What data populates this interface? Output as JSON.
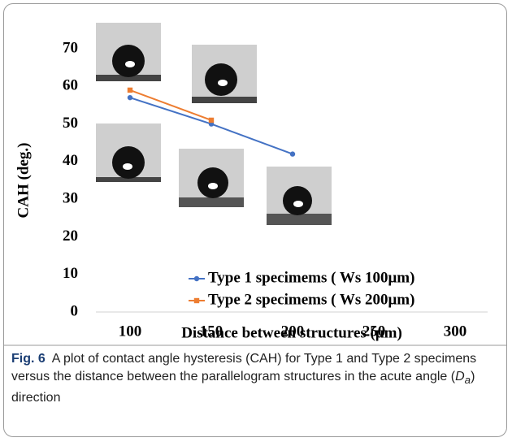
{
  "chart_data": {
    "type": "line",
    "xlabel": "Distance between structures (μm)",
    "ylabel": "CAH (deg.)",
    "x": [
      100,
      150,
      200
    ],
    "series": [
      {
        "name": "Type 1 specimems ( Ws 100μm)",
        "color": "#4472c4",
        "values": [
          57,
          50,
          42
        ]
      },
      {
        "name": "Type 2 specimems ( Ws 200μm)",
        "color": "#ed7d31",
        "values": [
          59,
          51,
          null
        ]
      }
    ],
    "xlim": [
      79,
      320
    ],
    "xticks": [
      100,
      150,
      200,
      250,
      300
    ],
    "ylim": [
      0,
      70
    ],
    "yticks": [
      0,
      10,
      20,
      30,
      40,
      50,
      60,
      70
    ],
    "grid": false,
    "legend": "lower right"
  },
  "caption": {
    "label": "Fig. 6",
    "text": "A plot of contact angle hysteresis (CAH) for Type 1 and Type 2 specimens versus the distance between the parallelogram structures in the acute angle (",
    "symbol": "D",
    "subscript": "a",
    "text_end": ") direction"
  }
}
